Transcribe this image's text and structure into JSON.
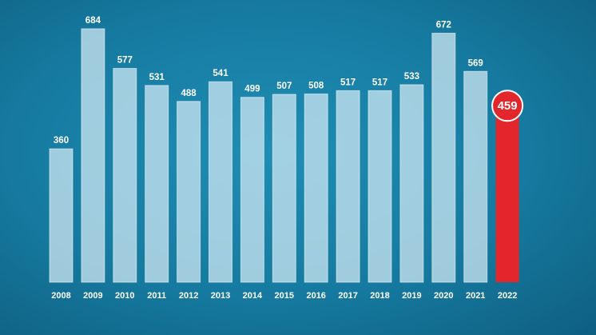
{
  "chart_data": {
    "type": "bar",
    "categories": [
      "2008",
      "2009",
      "2010",
      "2011",
      "2012",
      "2013",
      "2014",
      "2015",
      "2016",
      "2017",
      "2018",
      "2019",
      "2020",
      "2021",
      "2022"
    ],
    "values": [
      360,
      684,
      577,
      531,
      488,
      541,
      499,
      507,
      508,
      517,
      517,
      533,
      672,
      569,
      459
    ],
    "highlight_index": 14,
    "ylim": [
      0,
      740
    ],
    "grid": false,
    "colors": {
      "bar": "#d6ecf5",
      "highlight": "#e3262c",
      "background": "#167aa0",
      "label": "#ffffff"
    }
  }
}
